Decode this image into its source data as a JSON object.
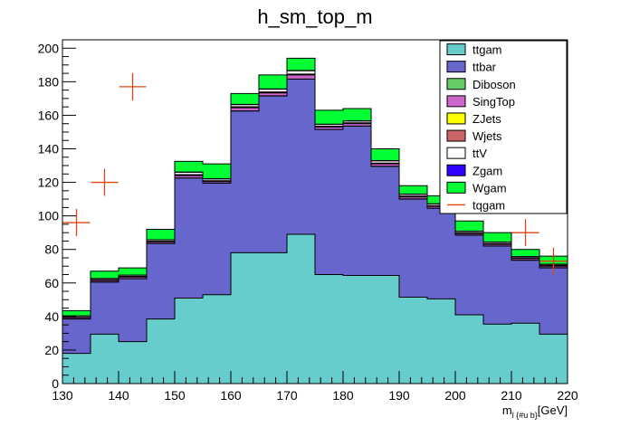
{
  "chart_data": {
    "type": "bar",
    "title": "h_sm_top_m",
    "xlabel": "m_{l {#u b}}[GeV]",
    "ylabel": "",
    "xlim": [
      130,
      220
    ],
    "ylim": [
      0,
      205
    ],
    "x_ticks": [
      130,
      140,
      150,
      160,
      170,
      180,
      190,
      200,
      210,
      220
    ],
    "y_ticks": [
      0,
      20,
      40,
      60,
      80,
      100,
      120,
      140,
      160,
      180,
      200
    ],
    "bin_edges": [
      130,
      135,
      140,
      145,
      150,
      155,
      160,
      165,
      170,
      175,
      180,
      185,
      190,
      195,
      200,
      205,
      210,
      215,
      220
    ],
    "stack_totals": {
      "ttgam": [
        18,
        29.5,
        25,
        38.5,
        51,
        53,
        78,
        78,
        89,
        65,
        64.5,
        64.5,
        51.5,
        50.5,
        41,
        35.5,
        36,
        29.5
      ],
      "ttbar": [
        38.5,
        60.5,
        62.5,
        83.5,
        122.5,
        119.5,
        162.5,
        171.5,
        181.5,
        151.5,
        153.5,
        129.5,
        110,
        104.5,
        88.5,
        82,
        73.5,
        69
      ],
      "Diboson": [
        38.6,
        60.6,
        62.6,
        83.6,
        122.6,
        119.6,
        162.6,
        171.6,
        181.6,
        151.6,
        153.6,
        129.6,
        110.1,
        104.6,
        88.6,
        82.1,
        73.6,
        69.1
      ],
      "SingTop": [
        39.3,
        61.5,
        63.5,
        84.5,
        124,
        120.5,
        164.5,
        173.3,
        184,
        153,
        155,
        131,
        111.3,
        105.7,
        89.5,
        83,
        74.5,
        70
      ],
      "ZJets": [
        39.4,
        61.6,
        63.6,
        84.6,
        124.2,
        120.7,
        164.7,
        173.5,
        184.2,
        153.2,
        155.2,
        131.2,
        111.5,
        105.8,
        89.6,
        83.1,
        74.6,
        70.1
      ],
      "Wjets": [
        39.6,
        61.9,
        63.9,
        84.9,
        124.6,
        121,
        165.1,
        173.9,
        184.6,
        153.5,
        155.5,
        131.5,
        111.8,
        106.1,
        89.9,
        83.4,
        74.9,
        70.4
      ],
      "ttV": [
        40.3,
        62.6,
        64.6,
        85.7,
        126,
        122,
        166.3,
        175.5,
        186.5,
        154.5,
        156.5,
        132.8,
        112.8,
        107,
        90.7,
        84.2,
        75.6,
        71
      ],
      "Zgam": [
        40.4,
        62.7,
        64.7,
        85.8,
        126.2,
        122.2,
        166.5,
        175.7,
        186.7,
        154.7,
        156.7,
        133,
        113,
        107.2,
        90.9,
        84.4,
        75.8,
        71.2
      ],
      "Wgam": [
        43.5,
        67,
        69,
        92,
        132.5,
        131,
        173,
        184,
        194,
        163,
        164,
        140,
        118,
        112,
        97,
        90,
        80,
        76
      ]
    },
    "series_colors": {
      "ttgam": "#66cccc",
      "ttbar": "#6666cc",
      "Diboson": "#66cc66",
      "SingTop": "#cc66cc",
      "ZJets": "#ffff00",
      "Wjets": "#cc6666",
      "ttV": "#ffffff",
      "Zgam": "#3300ff",
      "Wgam": "#00ff33"
    },
    "signal": {
      "name": "tqgam",
      "color": "#dd4411",
      "x": [
        132.5,
        137.5,
        142.5,
        212.5,
        217.5
      ],
      "y": [
        96,
        120,
        177,
        90,
        73
      ]
    },
    "legend_entries": [
      "ttgam",
      "ttbar",
      "Diboson",
      "SingTop",
      "ZJets",
      "Wjets",
      "ttV",
      "Zgam",
      "Wgam",
      "tqgam"
    ],
    "legend_placement": "top-right",
    "grid": false
  }
}
